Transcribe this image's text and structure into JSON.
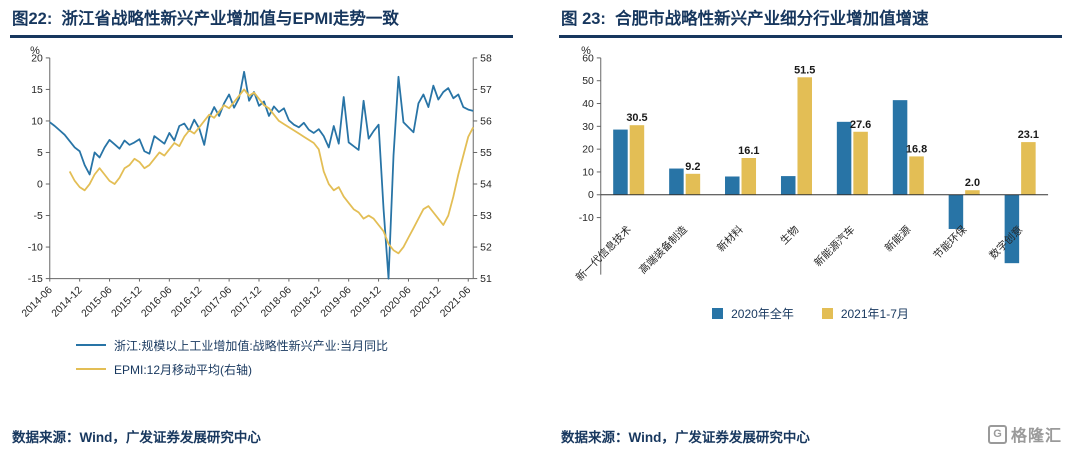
{
  "branding": {
    "logo_text": "格隆汇",
    "logo_letter": "G"
  },
  "colors": {
    "navy": "#17375E",
    "blue": "#2874A6",
    "gold": "#E3BE55",
    "axis": "#666666",
    "tick_label": "#262626"
  },
  "figures": [
    {
      "title": "图22:  浙江省战略性新兴产业增加值与EPMI走势一致",
      "source": "数据来源：Wind，广发证券发展研究中心"
    },
    {
      "title": "图 23:  合肥市战略性新兴产业细分行业增加值增速",
      "source": "数据来源：Wind，广发证券发展研究中心"
    }
  ],
  "chart_data": [
    {
      "type": "line",
      "title": "浙江省战略性新兴产业增加值与EPMI走势一致",
      "ylabel": "%",
      "grid": false,
      "legend_position": "bottom",
      "axes": {
        "left": {
          "min": -15,
          "max": 20,
          "ticks": [
            20,
            15,
            10,
            5,
            0,
            -5,
            -10,
            -15
          ],
          "label": "%"
        },
        "right": {
          "min": 51,
          "max": 58,
          "ticks": [
            58,
            57,
            56,
            55,
            54,
            53,
            52,
            51
          ]
        }
      },
      "total_points": 86,
      "x_tick_indices": [
        0,
        6,
        12,
        18,
        24,
        30,
        36,
        42,
        48,
        54,
        60,
        66,
        72,
        78,
        84
      ],
      "x_tick_labels": [
        "2014-06",
        "2014-12",
        "2015-06",
        "2015-12",
        "2016-06",
        "2016-12",
        "2017-06",
        "2017-12",
        "2018-06",
        "2018-12",
        "2019-06",
        "2019-12",
        "2020-06",
        "2020-12",
        "2021-06"
      ],
      "series": [
        {
          "name": "浙江:规模以上工业增加值:战略性新兴产业:当月同比",
          "axis": "left",
          "color": "#2874A6",
          "start": "2014-06",
          "start_index": 0,
          "values": [
            9.8,
            9.2,
            8.5,
            7.8,
            6.8,
            5.8,
            5.2,
            3.0,
            1.5,
            5.0,
            4.2,
            5.8,
            7.0,
            6.3,
            5.6,
            6.9,
            6.2,
            6.6,
            7.1,
            5.2,
            4.8,
            7.6,
            7.0,
            6.4,
            8.1,
            6.9,
            9.2,
            9.6,
            8.4,
            10.2,
            8.8,
            6.2,
            10.5,
            12.2,
            10.8,
            12.8,
            14.2,
            12.1,
            13.6,
            17.8,
            13.2,
            14.6,
            12.4,
            13.1,
            10.8,
            12.3,
            11.4,
            12.0,
            10.1,
            9.4,
            9.0,
            9.7,
            8.6,
            8.1,
            8.7,
            7.6,
            5.8,
            9.2,
            6.4,
            13.8,
            6.6,
            6.0,
            5.4,
            13.2,
            7.2,
            8.4,
            9.4,
            -4.0,
            -15.0,
            4.5,
            17.0,
            9.8,
            9.0,
            8.2,
            12.8,
            14.2,
            12.2,
            15.6,
            13.4,
            14.6,
            15.2,
            13.6,
            14.2,
            12.2,
            11.8,
            11.6
          ]
        },
        {
          "name": "EPMI:12月移动平均(右轴)",
          "axis": "right",
          "color": "#E3BE55",
          "start": "2014-10",
          "start_index": 4,
          "values": [
            54.4,
            54.1,
            53.9,
            53.8,
            54.0,
            54.3,
            54.5,
            54.3,
            54.1,
            54.0,
            54.2,
            54.5,
            54.6,
            54.8,
            54.7,
            54.5,
            54.6,
            54.8,
            55.0,
            54.9,
            55.1,
            55.3,
            55.2,
            55.5,
            55.7,
            55.6,
            55.8,
            56.0,
            56.2,
            56.1,
            56.3,
            56.5,
            56.4,
            56.6,
            56.8,
            57.0,
            56.8,
            56.9,
            56.7,
            56.5,
            56.4,
            56.2,
            56.0,
            55.9,
            55.8,
            55.7,
            55.6,
            55.5,
            55.4,
            55.3,
            55.1,
            54.4,
            54.0,
            53.8,
            53.9,
            53.6,
            53.4,
            53.2,
            53.1,
            52.9,
            53.0,
            52.9,
            52.7,
            52.5,
            52.1,
            51.9,
            51.8,
            52.0,
            52.3,
            52.6,
            52.9,
            53.2,
            53.3,
            53.1,
            52.9,
            52.7,
            53.0,
            53.6,
            54.3,
            54.9,
            55.5,
            55.8
          ]
        }
      ]
    },
    {
      "type": "bar",
      "title": "合肥市战略性新兴产业细分行业增加值增速",
      "ylabel": "%",
      "grid": false,
      "legend_position": "bottom",
      "ylim": [
        -35,
        60
      ],
      "yticks": [
        60,
        50,
        40,
        30,
        20,
        10,
        0,
        -10
      ],
      "categories": [
        "新一代信息技术",
        "高端装备制造",
        "新材料",
        "生物",
        "新能源汽车",
        "新能源",
        "节能环保",
        "数字创意"
      ],
      "series": [
        {
          "name": "2020年全年",
          "color": "#2874A6",
          "data_labels": false,
          "values": [
            28.6,
            11.5,
            8.0,
            8.2,
            32.0,
            41.5,
            -15.0,
            -30.0
          ]
        },
        {
          "name": "2021年1-7月",
          "color": "#E3BE55",
          "data_labels": true,
          "values": [
            30.5,
            9.2,
            16.1,
            51.5,
            27.6,
            16.8,
            2.0,
            23.1
          ]
        }
      ]
    }
  ]
}
